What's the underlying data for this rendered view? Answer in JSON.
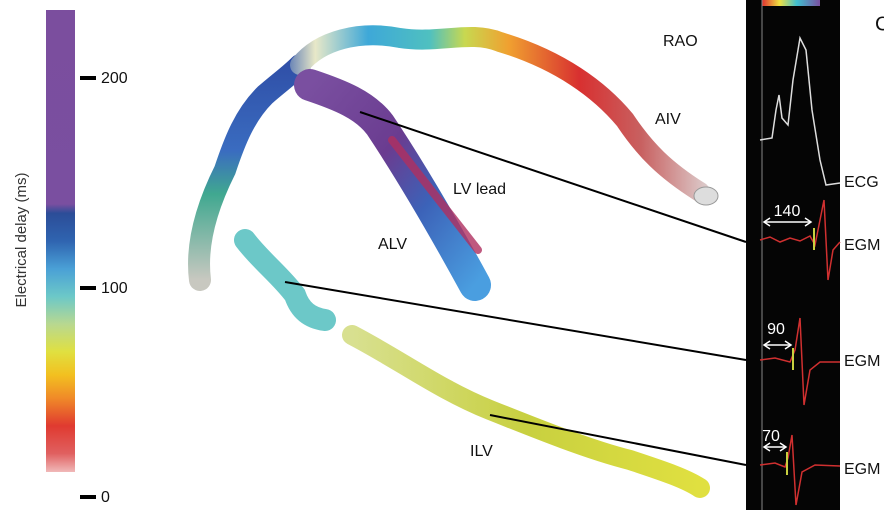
{
  "colorbar": {
    "label": "Electrical delay (ms)",
    "ticks": [
      200,
      100,
      0
    ]
  },
  "labels": {
    "rao": "RAO",
    "aiv": "AIV",
    "lv_lead": "LV lead",
    "alv": "ALV",
    "ilv": "ILV"
  },
  "traces": [
    {
      "label": "ECG"
    },
    {
      "label": "EGM",
      "delay": 140
    },
    {
      "label": "EGM",
      "delay": 90
    },
    {
      "label": "EGM",
      "delay": 70
    }
  ],
  "panel_label": "C"
}
